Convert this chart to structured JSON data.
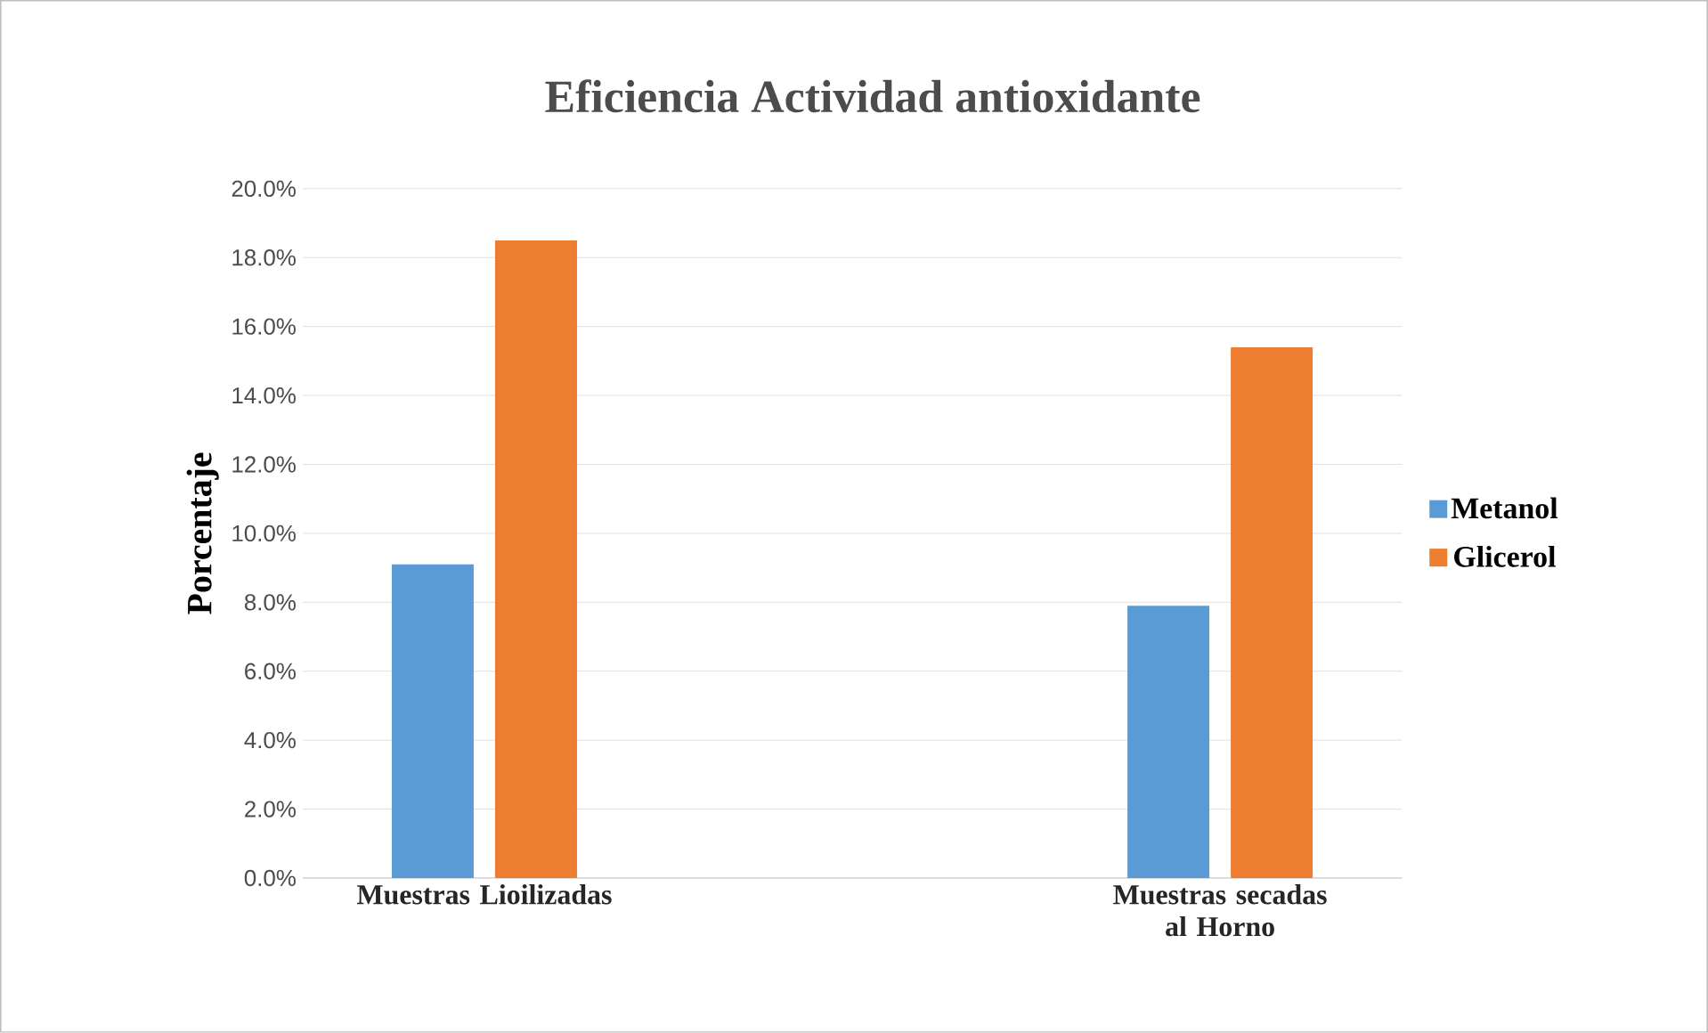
{
  "chart_data": {
    "type": "bar",
    "title": "Eficiencia Actividad antioxidante",
    "ylabel": "Porcentaje",
    "categories": [
      "Muestras Lioilizadas",
      "Muestras secadas al Horno"
    ],
    "series": [
      {
        "name": "Metanol",
        "color": "#5b9bd5",
        "values": [
          9.1,
          7.9
        ]
      },
      {
        "name": "Glicerol",
        "color": "#ed7d31",
        "values": [
          18.5,
          15.4
        ]
      }
    ],
    "ylim": [
      0,
      20
    ],
    "yticks": [
      {
        "value": 0,
        "label": "0.0%"
      },
      {
        "value": 2,
        "label": "2.0%"
      },
      {
        "value": 4,
        "label": "4.0%"
      },
      {
        "value": 6,
        "label": "6.0%"
      },
      {
        "value": 8,
        "label": "8.0%"
      },
      {
        "value": 10,
        "label": "10.0%"
      },
      {
        "value": 12,
        "label": "12.0%"
      },
      {
        "value": 14,
        "label": "14.0%"
      },
      {
        "value": 16,
        "label": "16.0%"
      },
      {
        "value": 18,
        "label": "18.0%"
      },
      {
        "value": 20,
        "label": "20.0%"
      }
    ],
    "grid": "y",
    "legend": "right"
  }
}
